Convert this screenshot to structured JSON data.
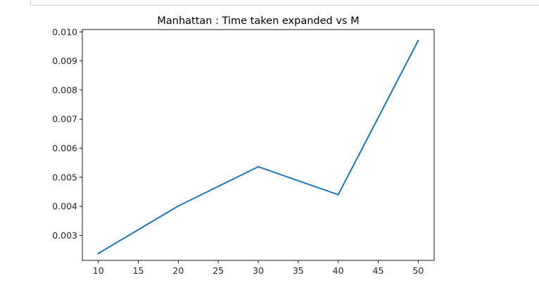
{
  "chart_data": {
    "type": "line",
    "title": "Manhattan : Time taken expanded vs M",
    "xlabel": "",
    "ylabel": "",
    "x": [
      10,
      20,
      30,
      40,
      50
    ],
    "series": [
      {
        "values": [
          0.00238,
          0.00401,
          0.00536,
          0.0044,
          0.0097
        ],
        "color": "#1f77b4"
      }
    ],
    "xlim": [
      8,
      52
    ],
    "ylim": [
      0.00214,
      0.01008
    ],
    "xticks": [
      10,
      15,
      20,
      25,
      30,
      35,
      40,
      45,
      50
    ],
    "xtick_labels": [
      "10",
      "15",
      "20",
      "25",
      "30",
      "35",
      "40",
      "45",
      "50"
    ],
    "yticks": [
      0.003,
      0.004,
      0.005,
      0.006,
      0.007,
      0.008,
      0.009,
      0.01
    ],
    "ytick_labels": [
      "0.003",
      "0.004",
      "0.005",
      "0.006",
      "0.007",
      "0.008",
      "0.009",
      "0.010"
    ],
    "grid": false,
    "legend": "none"
  }
}
